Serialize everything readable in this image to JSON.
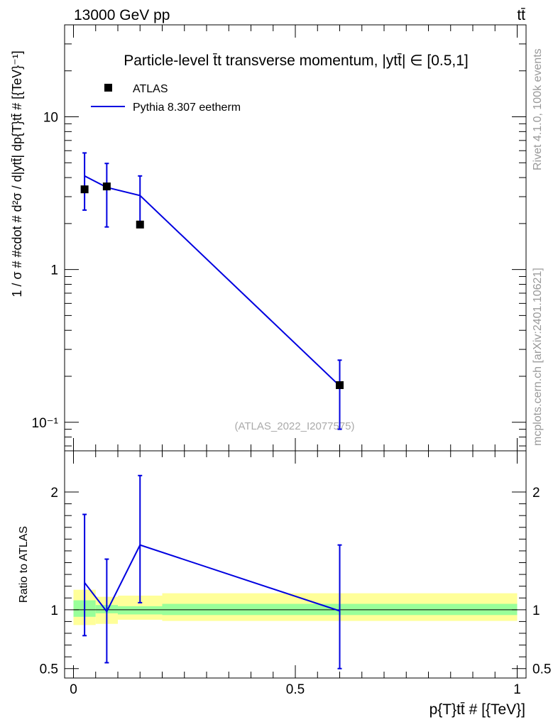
{
  "header": {
    "energy_label": "13000 GeV pp",
    "process_label": "tt̄",
    "side_rivet": "Rivet 4.1.0,  100k events",
    "side_source": "mcplots.cern.ch [arXiv:2401.10621]",
    "watermark": "(ATLAS_2022_I2077575)"
  },
  "colors": {
    "data": "#000000",
    "mc": "#0000e0",
    "band_inner": "#99ff99",
    "band_outer": "#ffff99"
  },
  "chart_data": [
    {
      "type": "line",
      "title": "Particle-level t̄t transverse momentum, |ytt̄| ∈ [0.5,1]",
      "ylabel": "1 / σ # #cdot # d²σ / d|ytt̄| dp{T}tt̄ # [{TeV}⁻¹]",
      "yscale": "log",
      "ylim": [
        0.065,
        40
      ],
      "xlim": [
        -0.02,
        1.02
      ],
      "y_ticks": [
        {
          "value": 10,
          "label": "10"
        },
        {
          "value": 1,
          "label": "1"
        },
        {
          "value": 0.1,
          "label": "10⁻¹"
        }
      ],
      "legend": {
        "position": "top-left",
        "entries": [
          {
            "label": "ATLAS",
            "marker": "square"
          },
          {
            "label": "Pythia 8.307 eetherm",
            "marker": "line"
          }
        ]
      },
      "series": [
        {
          "name": "ATLAS",
          "style": "markers",
          "x": [
            0.025,
            0.075,
            0.15,
            0.6
          ],
          "y": [
            3.35,
            3.5,
            1.97,
            0.175
          ]
        },
        {
          "name": "Pythia 8.307 eetherm",
          "style": "line",
          "x": [
            0.025,
            0.075,
            0.15,
            0.6
          ],
          "y": [
            4.1,
            3.45,
            3.05,
            0.173
          ],
          "err_low": [
            2.45,
            1.9,
            1.97,
            0.09
          ],
          "err_high": [
            5.8,
            4.95,
            4.1,
            0.255
          ]
        }
      ]
    },
    {
      "type": "line",
      "ylabel": "Ratio to ATLAS",
      "xlabel": "p{T}tt̄ # [{TeV}]",
      "ylim": [
        0.42,
        2.35
      ],
      "xlim": [
        -0.02,
        1.02
      ],
      "y_ticks": [
        {
          "value": 0.5,
          "label": "0.5"
        },
        {
          "value": 1,
          "label": "1"
        },
        {
          "value": 2,
          "label": "2"
        }
      ],
      "x_ticks": [
        {
          "value": 0,
          "label": "0"
        },
        {
          "value": 0.5,
          "label": "0.5"
        },
        {
          "value": 1,
          "label": "1"
        }
      ],
      "band_edges": [
        0,
        0.05,
        0.1,
        0.2,
        1.0
      ],
      "band_inner": [
        [
          0.94,
          1.08
        ],
        [
          0.97,
          1.04
        ],
        [
          0.96,
          1.03
        ],
        [
          0.955,
          1.05
        ]
      ],
      "band_outer": [
        [
          0.87,
          1.17
        ],
        [
          0.88,
          1.11
        ],
        [
          0.915,
          1.12
        ],
        [
          0.905,
          1.14
        ]
      ],
      "series": [
        {
          "name": "Pythia 8.307 eetherm",
          "x": [
            0.025,
            0.075,
            0.15,
            0.6
          ],
          "y": [
            1.23,
            0.985,
            1.55,
            0.99
          ],
          "err_low": [
            0.78,
            0.55,
            1.06,
            0.5
          ],
          "err_high": [
            1.81,
            1.43,
            2.14,
            1.55
          ]
        }
      ]
    }
  ]
}
